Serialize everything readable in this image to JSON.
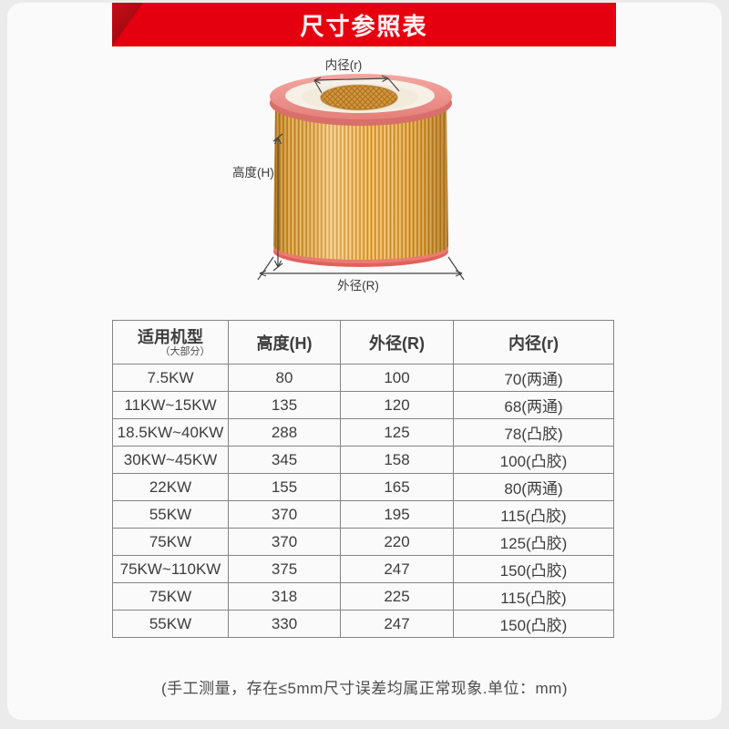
{
  "banner": {
    "title": "尺寸参照表",
    "bg_color": "#e50010",
    "accent_color": "#a50b12"
  },
  "figure": {
    "labels": {
      "inner_diameter": "内径(r)",
      "height": "高度(H)",
      "outer_diameter": "外径(R)"
    },
    "colors": {
      "top_rim_pink": "#ee918c",
      "body_orange": "#eaa83e",
      "bottom_rim_red": "#e2605b",
      "inner_mesh": "#d39539"
    }
  },
  "table": {
    "headers": [
      "适用机型",
      "高度(H)",
      "外径(R)",
      "内径(r)"
    ],
    "col1_subheader": "（大部分）",
    "rows": [
      [
        "7.5KW",
        "80",
        "100",
        "70(两通)"
      ],
      [
        "11KW~15KW",
        "135",
        "120",
        "68(两通)"
      ],
      [
        "18.5KW~40KW",
        "288",
        "125",
        "78(凸胶)"
      ],
      [
        "30KW~45KW",
        "345",
        "158",
        "100(凸胶)"
      ],
      [
        "22KW",
        "155",
        "165",
        "80(两通)"
      ],
      [
        "55KW",
        "370",
        "195",
        "115(凸胶)"
      ],
      [
        "75KW",
        "370",
        "220",
        "125(凸胶)"
      ],
      [
        "75KW~110KW",
        "375",
        "247",
        "150(凸胶)"
      ],
      [
        "75KW",
        "318",
        "225",
        "115(凸胶)"
      ],
      [
        "55KW",
        "330",
        "247",
        "150(凸胶)"
      ]
    ],
    "border_color": "#848484"
  },
  "footer": {
    "note": "(手工测量，存在≤5mm尺寸误差均属正常现象.单位：mm)"
  },
  "chart_data": {
    "type": "table",
    "title": "尺寸参照表",
    "columns": [
      "适用机型（大部分）",
      "高度(H)",
      "外径(R)",
      "内径(r)"
    ],
    "rows": [
      [
        "7.5KW",
        80,
        100,
        "70(两通)"
      ],
      [
        "11KW~15KW",
        135,
        120,
        "68(两通)"
      ],
      [
        "18.5KW~40KW",
        288,
        125,
        "78(凸胶)"
      ],
      [
        "30KW~45KW",
        345,
        158,
        "100(凸胶)"
      ],
      [
        "22KW",
        155,
        165,
        "80(两通)"
      ],
      [
        "55KW",
        370,
        195,
        "115(凸胶)"
      ],
      [
        "75KW",
        370,
        220,
        "125(凸胶)"
      ],
      [
        "75KW~110KW",
        375,
        247,
        "150(凸胶)"
      ],
      [
        "75KW",
        318,
        225,
        "115(凸胶)"
      ],
      [
        "55KW",
        330,
        247,
        "150(凸胶)"
      ]
    ],
    "unit": "mm"
  }
}
